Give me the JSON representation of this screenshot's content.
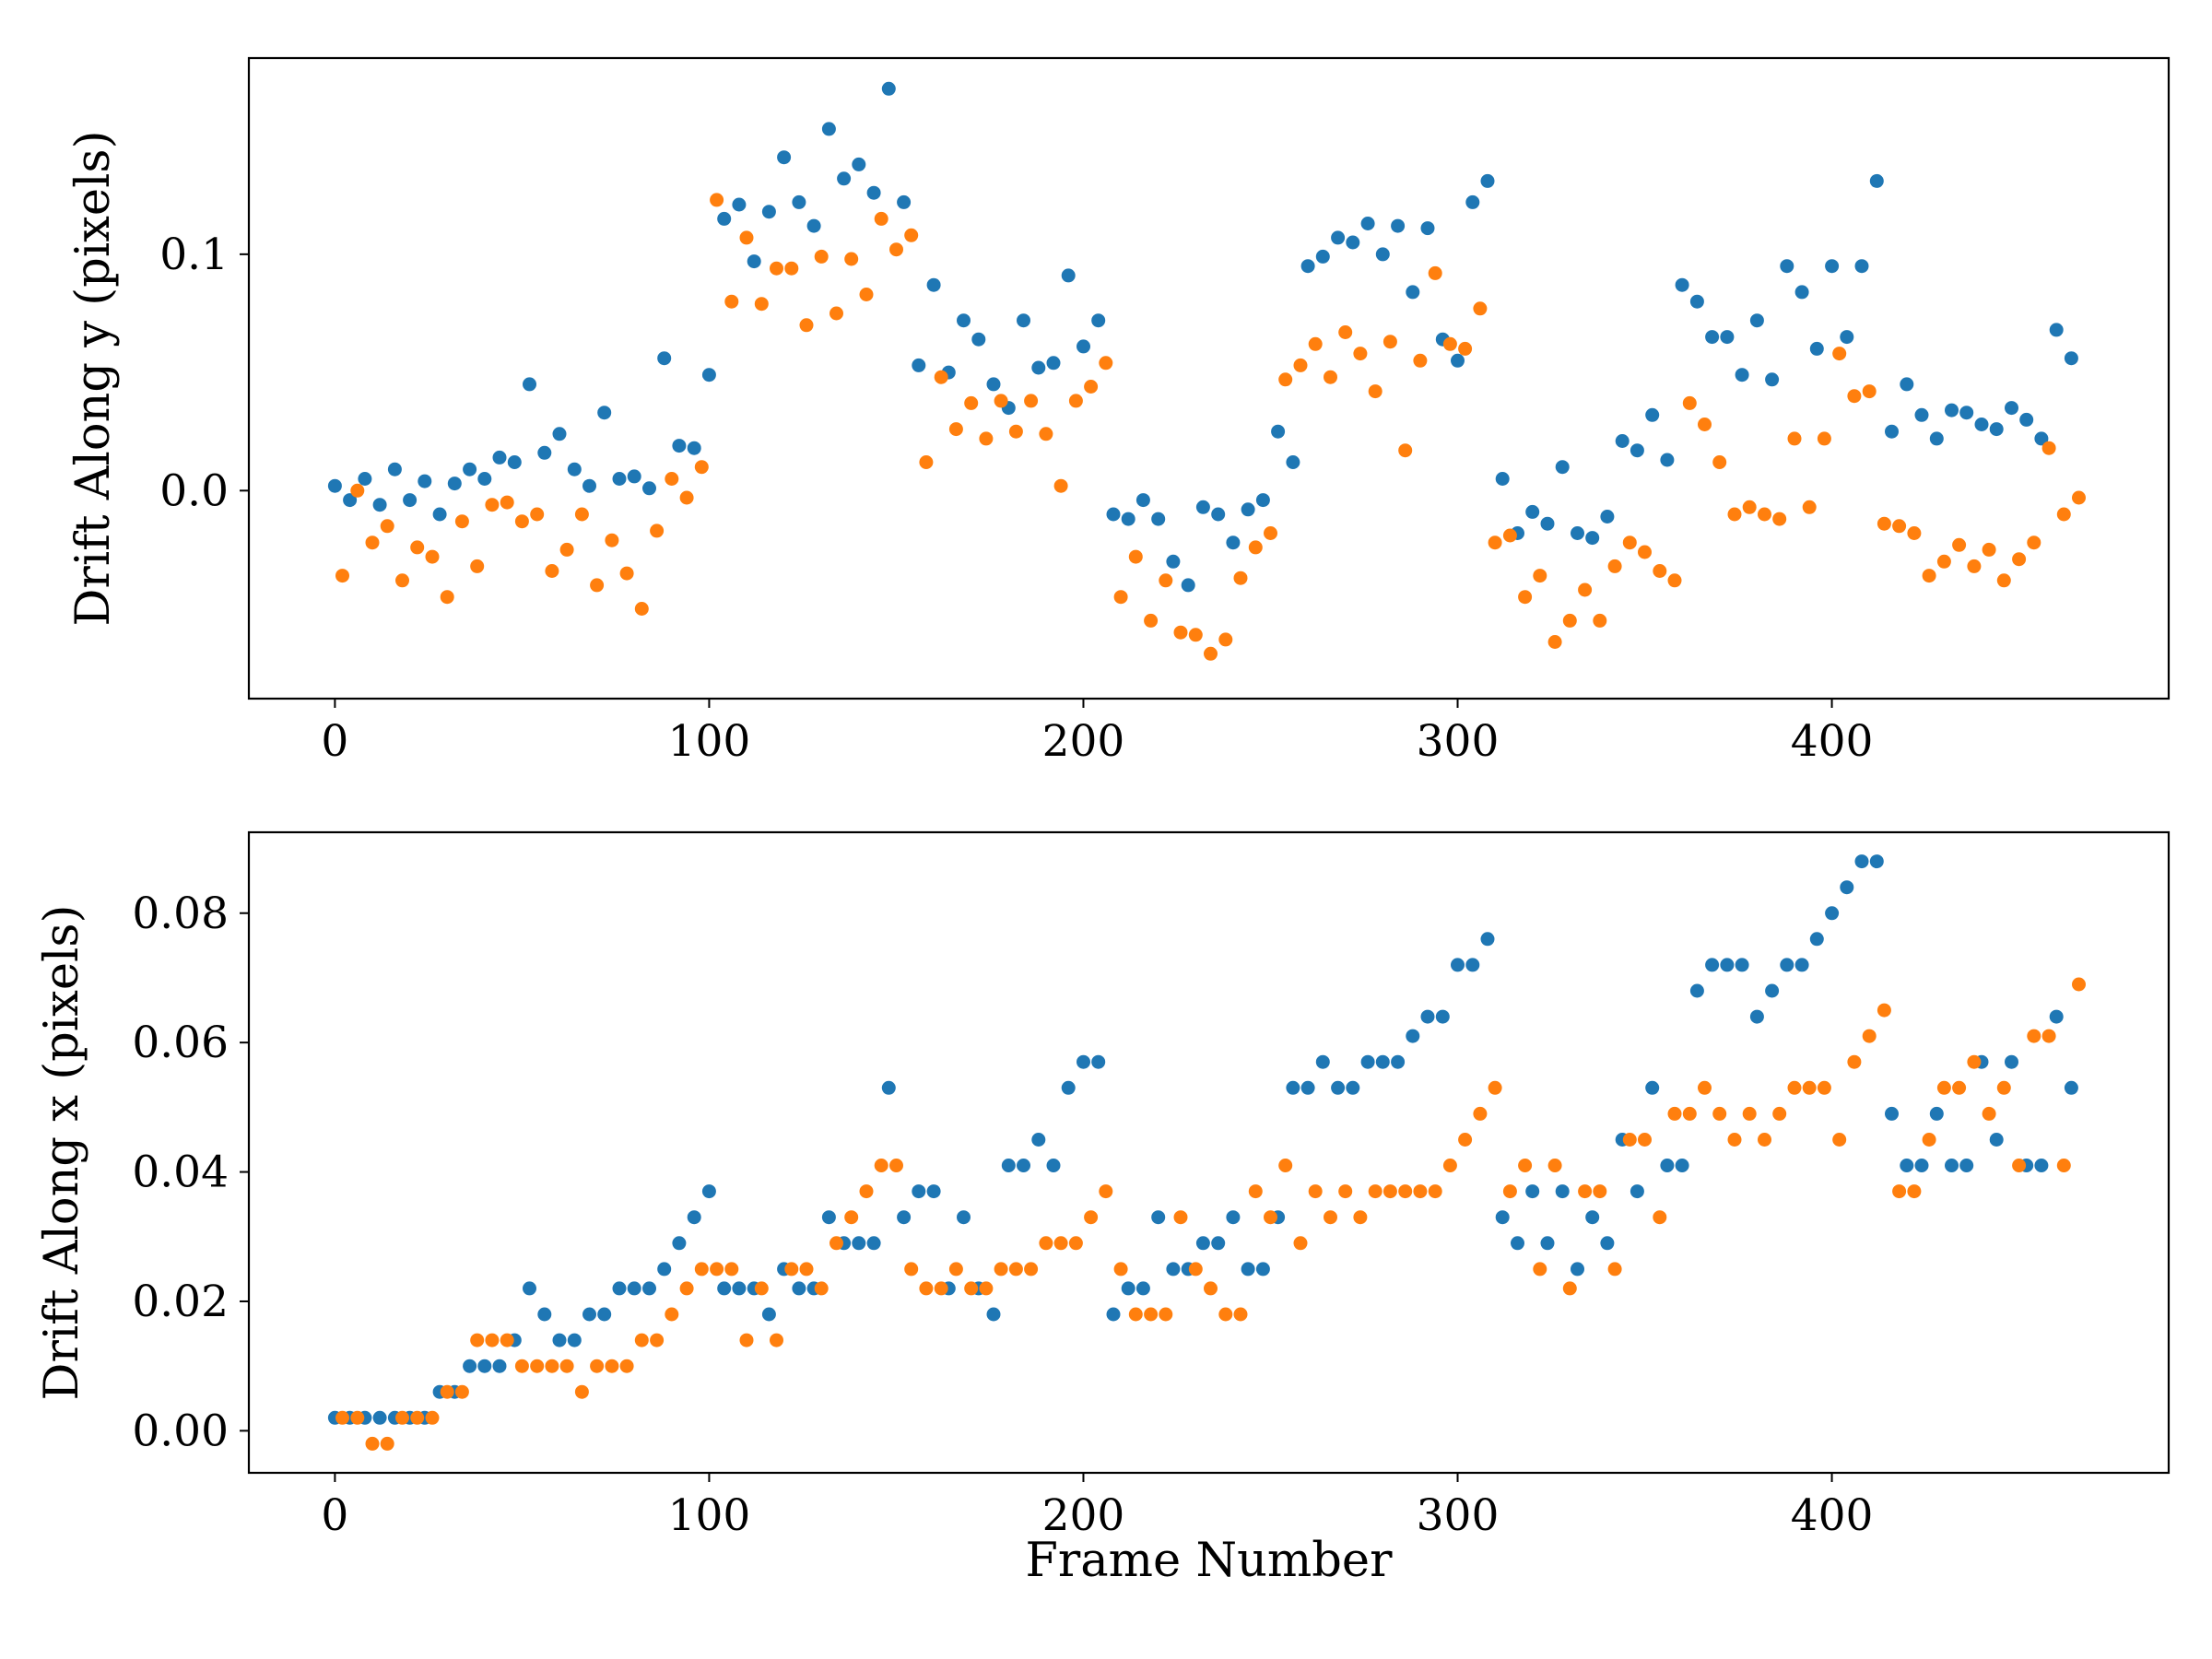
{
  "chart_data": [
    {
      "type": "scatter",
      "title": "",
      "xlabel": "",
      "ylabel": "Drift Along y (pixels)",
      "xlim": [
        -23,
        490
      ],
      "ylim": [
        -0.088,
        0.183
      ],
      "xticks": [
        0,
        100,
        200,
        300,
        400
      ],
      "xtick_labels": [
        "0",
        "100",
        "200",
        "300",
        "400"
      ],
      "yticks": [
        0.0,
        0.1
      ],
      "ytick_labels": [
        "0.0",
        "0.1"
      ],
      "grid": false,
      "series": [
        {
          "color": "#1f77b4",
          "x": [
            0,
            4,
            8,
            12,
            16,
            20,
            24,
            28,
            32,
            36,
            40,
            44,
            48,
            52,
            56,
            60,
            64,
            68,
            72,
            76,
            80,
            84,
            88,
            92,
            96,
            100,
            104,
            108,
            112,
            116,
            120,
            124,
            128,
            132,
            136,
            140,
            144,
            148,
            152,
            156,
            160,
            164,
            168,
            172,
            176,
            180,
            184,
            188,
            192,
            196,
            200,
            204,
            208,
            212,
            216,
            220,
            224,
            228,
            232,
            236,
            240,
            244,
            248,
            252,
            256,
            260,
            264,
            268,
            272,
            276,
            280,
            284,
            288,
            292,
            296,
            300,
            304,
            308,
            312,
            316,
            320,
            324,
            328,
            332,
            336,
            340,
            344,
            348,
            352,
            356,
            360,
            364,
            368,
            372,
            376,
            380,
            384,
            388,
            392,
            396,
            400,
            404,
            408,
            412,
            416,
            420,
            424,
            428,
            432,
            436,
            440,
            444,
            448,
            452,
            456,
            460,
            464
          ],
          "y": [
            0.002,
            -0.004,
            0.005,
            -0.006,
            0.009,
            -0.004,
            0.004,
            -0.01,
            0.003,
            0.009,
            0.005,
            0.014,
            0.012,
            0.045,
            0.016,
            0.024,
            0.009,
            0.002,
            0.033,
            0.005,
            0.006,
            0.001,
            0.056,
            0.019,
            0.018,
            0.049,
            0.115,
            0.121,
            0.097,
            0.118,
            0.141,
            0.122,
            0.112,
            0.153,
            0.132,
            0.138,
            0.126,
            0.17,
            0.122,
            0.053,
            0.087,
            0.05,
            0.072,
            0.064,
            0.045,
            0.035,
            0.072,
            0.052,
            0.054,
            0.091,
            0.061,
            0.072,
            -0.01,
            -0.012,
            -0.004,
            -0.012,
            -0.03,
            -0.04,
            -0.007,
            -0.01,
            -0.022,
            -0.008,
            -0.004,
            0.025,
            0.012,
            0.095,
            0.099,
            0.107,
            0.105,
            0.113,
            0.1,
            0.112,
            0.084,
            0.111,
            0.064,
            0.055,
            0.122,
            0.131,
            0.005,
            -0.018,
            -0.009,
            -0.014,
            0.01,
            -0.018,
            -0.02,
            -0.011,
            0.021,
            0.017,
            0.032,
            0.013,
            0.087,
            0.08,
            0.065,
            0.065,
            0.049,
            0.072,
            0.047,
            0.095,
            0.084,
            0.06,
            0.095,
            0.065,
            0.095,
            0.131,
            0.025,
            0.045,
            0.032,
            0.022,
            0.034,
            0.033,
            0.028,
            0.026,
            0.035,
            0.03,
            0.022,
            0.068,
            0.056
          ]
        },
        {
          "color": "#ff7f0e",
          "x": [
            2,
            6,
            10,
            14,
            18,
            22,
            26,
            30,
            34,
            38,
            42,
            46,
            50,
            54,
            58,
            62,
            66,
            70,
            74,
            78,
            82,
            86,
            90,
            94,
            98,
            102,
            106,
            110,
            114,
            118,
            122,
            126,
            130,
            134,
            138,
            142,
            146,
            150,
            154,
            158,
            162,
            166,
            170,
            174,
            178,
            182,
            186,
            190,
            194,
            198,
            202,
            206,
            210,
            214,
            218,
            222,
            226,
            230,
            234,
            238,
            242,
            246,
            250,
            254,
            258,
            262,
            266,
            270,
            274,
            278,
            282,
            286,
            290,
            294,
            298,
            302,
            306,
            310,
            314,
            318,
            322,
            326,
            330,
            334,
            338,
            342,
            346,
            350,
            354,
            358,
            362,
            366,
            370,
            374,
            378,
            382,
            386,
            390,
            394,
            398,
            402,
            406,
            410,
            414,
            418,
            422,
            426,
            430,
            434,
            438,
            442,
            446,
            450,
            454,
            458,
            462,
            466
          ],
          "y": [
            -0.036,
            0.0,
            -0.022,
            -0.015,
            -0.038,
            -0.024,
            -0.028,
            -0.045,
            -0.013,
            -0.032,
            -0.006,
            -0.005,
            -0.013,
            -0.01,
            -0.034,
            -0.025,
            -0.01,
            -0.04,
            -0.021,
            -0.035,
            -0.05,
            -0.017,
            0.005,
            -0.003,
            0.01,
            0.123,
            0.08,
            0.107,
            0.079,
            0.094,
            0.094,
            0.07,
            0.099,
            0.075,
            0.098,
            0.083,
            0.115,
            0.102,
            0.108,
            0.012,
            0.048,
            0.026,
            0.037,
            0.022,
            0.038,
            0.025,
            0.038,
            0.024,
            0.002,
            0.038,
            0.044,
            0.054,
            -0.045,
            -0.028,
            -0.055,
            -0.038,
            -0.06,
            -0.061,
            -0.069,
            -0.063,
            -0.037,
            -0.024,
            -0.018,
            0.047,
            0.053,
            0.062,
            0.048,
            0.067,
            0.058,
            0.042,
            0.063,
            0.017,
            0.055,
            0.092,
            0.062,
            0.06,
            0.077,
            -0.022,
            -0.019,
            -0.045,
            -0.036,
            -0.064,
            -0.055,
            -0.042,
            -0.055,
            -0.032,
            -0.022,
            -0.026,
            -0.034,
            -0.038,
            0.037,
            0.028,
            0.012,
            -0.01,
            -0.007,
            -0.01,
            -0.012,
            0.022,
            -0.007,
            0.022,
            0.058,
            0.04,
            0.042,
            -0.014,
            -0.015,
            -0.018,
            -0.036,
            -0.03,
            -0.023,
            -0.032,
            -0.025,
            -0.038,
            -0.029,
            -0.022,
            0.018,
            -0.01,
            -0.003
          ]
        }
      ]
    },
    {
      "type": "scatter",
      "title": "",
      "xlabel": "Frame Number",
      "ylabel": "Drift Along x (pixels)",
      "xlim": [
        -23,
        490
      ],
      "ylim": [
        -0.0065,
        0.0925
      ],
      "xticks": [
        0,
        100,
        200,
        300,
        400
      ],
      "xtick_labels": [
        "0",
        "100",
        "200",
        "300",
        "400"
      ],
      "yticks": [
        0.0,
        0.02,
        0.04,
        0.06,
        0.08
      ],
      "ytick_labels": [
        "0.00",
        "0.02",
        "0.04",
        "0.06",
        "0.08"
      ],
      "grid": false,
      "series": [
        {
          "color": "#1f77b4",
          "x": [
            0,
            4,
            8,
            12,
            16,
            20,
            24,
            28,
            32,
            36,
            40,
            44,
            48,
            52,
            56,
            60,
            64,
            68,
            72,
            76,
            80,
            84,
            88,
            92,
            96,
            100,
            104,
            108,
            112,
            116,
            120,
            124,
            128,
            132,
            136,
            140,
            144,
            148,
            152,
            156,
            160,
            164,
            168,
            172,
            176,
            180,
            184,
            188,
            192,
            196,
            200,
            204,
            208,
            212,
            216,
            220,
            224,
            228,
            232,
            236,
            240,
            244,
            248,
            252,
            256,
            260,
            264,
            268,
            272,
            276,
            280,
            284,
            288,
            292,
            296,
            300,
            304,
            308,
            312,
            316,
            320,
            324,
            328,
            332,
            336,
            340,
            344,
            348,
            352,
            356,
            360,
            364,
            368,
            372,
            376,
            380,
            384,
            388,
            392,
            396,
            400,
            404,
            408,
            412,
            416,
            420,
            424,
            428,
            432,
            436,
            440,
            444,
            448,
            452,
            456,
            460,
            464
          ],
          "y": [
            0.002,
            0.002,
            0.002,
            0.002,
            0.002,
            0.002,
            0.002,
            0.006,
            0.006,
            0.01,
            0.01,
            0.01,
            0.014,
            0.022,
            0.018,
            0.014,
            0.014,
            0.018,
            0.018,
            0.022,
            0.022,
            0.022,
            0.025,
            0.029,
            0.033,
            0.037,
            0.022,
            0.022,
            0.022,
            0.018,
            0.025,
            0.022,
            0.022,
            0.033,
            0.029,
            0.029,
            0.029,
            0.053,
            0.033,
            0.037,
            0.037,
            0.022,
            0.033,
            0.022,
            0.018,
            0.041,
            0.041,
            0.045,
            0.041,
            0.053,
            0.057,
            0.057,
            0.018,
            0.022,
            0.022,
            0.033,
            0.025,
            0.025,
            0.029,
            0.029,
            0.033,
            0.025,
            0.025,
            0.033,
            0.053,
            0.053,
            0.057,
            0.053,
            0.053,
            0.057,
            0.057,
            0.057,
            0.061,
            0.064,
            0.064,
            0.072,
            0.072,
            0.076,
            0.033,
            0.029,
            0.037,
            0.029,
            0.037,
            0.025,
            0.033,
            0.029,
            0.045,
            0.037,
            0.053,
            0.041,
            0.041,
            0.068,
            0.072,
            0.072,
            0.072,
            0.064,
            0.068,
            0.072,
            0.072,
            0.076,
            0.08,
            0.084,
            0.088,
            0.088,
            0.049,
            0.041,
            0.041,
            0.049,
            0.041,
            0.041,
            0.057,
            0.045,
            0.057,
            0.041,
            0.041,
            0.064,
            0.053
          ]
        },
        {
          "color": "#ff7f0e",
          "x": [
            2,
            6,
            10,
            14,
            18,
            22,
            26,
            30,
            34,
            38,
            42,
            46,
            50,
            54,
            58,
            62,
            66,
            70,
            74,
            78,
            82,
            86,
            90,
            94,
            98,
            102,
            106,
            110,
            114,
            118,
            122,
            126,
            130,
            134,
            138,
            142,
            146,
            150,
            154,
            158,
            162,
            166,
            170,
            174,
            178,
            182,
            186,
            190,
            194,
            198,
            202,
            206,
            210,
            214,
            218,
            222,
            226,
            230,
            234,
            238,
            242,
            246,
            250,
            254,
            258,
            262,
            266,
            270,
            274,
            278,
            282,
            286,
            290,
            294,
            298,
            302,
            306,
            310,
            314,
            318,
            322,
            326,
            330,
            334,
            338,
            342,
            346,
            350,
            354,
            358,
            362,
            366,
            370,
            374,
            378,
            382,
            386,
            390,
            394,
            398,
            402,
            406,
            410,
            414,
            418,
            422,
            426,
            430,
            434,
            438,
            442,
            446,
            450,
            454,
            458,
            462,
            466
          ],
          "y": [
            0.002,
            0.002,
            -0.002,
            -0.002,
            0.002,
            0.002,
            0.002,
            0.006,
            0.006,
            0.014,
            0.014,
            0.014,
            0.01,
            0.01,
            0.01,
            0.01,
            0.006,
            0.01,
            0.01,
            0.01,
            0.014,
            0.014,
            0.018,
            0.022,
            0.025,
            0.025,
            0.025,
            0.014,
            0.022,
            0.014,
            0.025,
            0.025,
            0.022,
            0.029,
            0.033,
            0.037,
            0.041,
            0.041,
            0.025,
            0.022,
            0.022,
            0.025,
            0.022,
            0.022,
            0.025,
            0.025,
            0.025,
            0.029,
            0.029,
            0.029,
            0.033,
            0.037,
            0.025,
            0.018,
            0.018,
            0.018,
            0.033,
            0.025,
            0.022,
            0.018,
            0.018,
            0.037,
            0.033,
            0.041,
            0.029,
            0.037,
            0.033,
            0.037,
            0.033,
            0.037,
            0.037,
            0.037,
            0.037,
            0.037,
            0.041,
            0.045,
            0.049,
            0.053,
            0.037,
            0.041,
            0.025,
            0.041,
            0.022,
            0.037,
            0.037,
            0.025,
            0.045,
            0.045,
            0.033,
            0.049,
            0.049,
            0.053,
            0.049,
            0.045,
            0.049,
            0.045,
            0.049,
            0.053,
            0.053,
            0.053,
            0.045,
            0.057,
            0.061,
            0.065,
            0.037,
            0.037,
            0.045,
            0.053,
            0.053,
            0.057,
            0.049,
            0.053,
            0.041,
            0.061,
            0.061,
            0.041,
            0.069
          ]
        }
      ]
    }
  ]
}
